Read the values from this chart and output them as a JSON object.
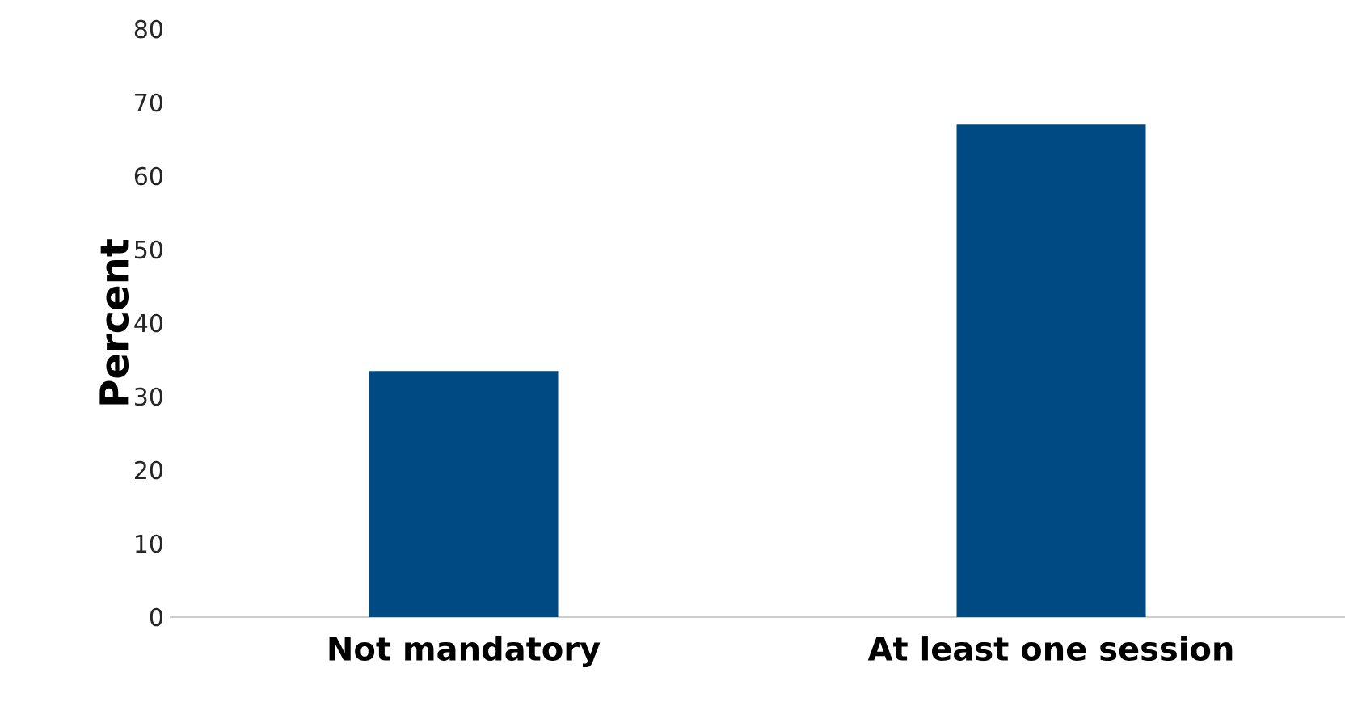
{
  "chart_data": {
    "type": "bar",
    "categories": [
      "Not mandatory",
      "At least one session"
    ],
    "values": [
      33.5,
      67
    ],
    "color": "#004a83",
    "ylabel": "Percent",
    "ylim": [
      0,
      80
    ],
    "yticks": [
      0,
      10,
      20,
      30,
      40,
      50,
      60,
      70,
      80
    ],
    "grid": false
  }
}
